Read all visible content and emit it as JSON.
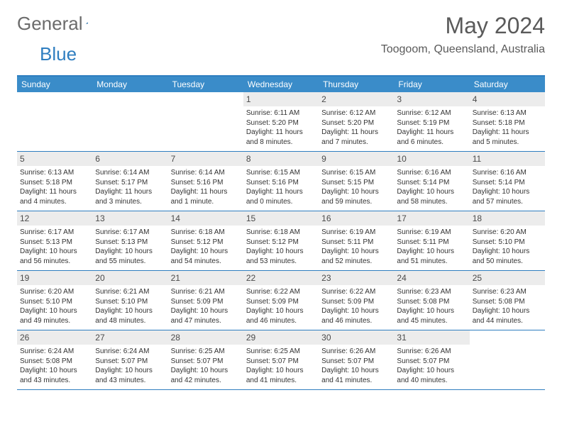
{
  "logo": {
    "text1": "General",
    "text2": "Blue"
  },
  "title": "May 2024",
  "location": "Toogoom, Queensland, Australia",
  "weekdays": [
    "Sunday",
    "Monday",
    "Tuesday",
    "Wednesday",
    "Thursday",
    "Friday",
    "Saturday"
  ],
  "colors": {
    "header_bg": "#3a8cc9",
    "border": "#2f7ec0",
    "daynum_bg": "#ececec",
    "text": "#333333",
    "title_text": "#5a5a5a"
  },
  "weeks": [
    [
      {
        "day": "",
        "sunrise": "",
        "sunset": "",
        "daylight": ""
      },
      {
        "day": "",
        "sunrise": "",
        "sunset": "",
        "daylight": ""
      },
      {
        "day": "",
        "sunrise": "",
        "sunset": "",
        "daylight": ""
      },
      {
        "day": "1",
        "sunrise": "Sunrise: 6:11 AM",
        "sunset": "Sunset: 5:20 PM",
        "daylight": "Daylight: 11 hours and 8 minutes."
      },
      {
        "day": "2",
        "sunrise": "Sunrise: 6:12 AM",
        "sunset": "Sunset: 5:20 PM",
        "daylight": "Daylight: 11 hours and 7 minutes."
      },
      {
        "day": "3",
        "sunrise": "Sunrise: 6:12 AM",
        "sunset": "Sunset: 5:19 PM",
        "daylight": "Daylight: 11 hours and 6 minutes."
      },
      {
        "day": "4",
        "sunrise": "Sunrise: 6:13 AM",
        "sunset": "Sunset: 5:18 PM",
        "daylight": "Daylight: 11 hours and 5 minutes."
      }
    ],
    [
      {
        "day": "5",
        "sunrise": "Sunrise: 6:13 AM",
        "sunset": "Sunset: 5:18 PM",
        "daylight": "Daylight: 11 hours and 4 minutes."
      },
      {
        "day": "6",
        "sunrise": "Sunrise: 6:14 AM",
        "sunset": "Sunset: 5:17 PM",
        "daylight": "Daylight: 11 hours and 3 minutes."
      },
      {
        "day": "7",
        "sunrise": "Sunrise: 6:14 AM",
        "sunset": "Sunset: 5:16 PM",
        "daylight": "Daylight: 11 hours and 1 minute."
      },
      {
        "day": "8",
        "sunrise": "Sunrise: 6:15 AM",
        "sunset": "Sunset: 5:16 PM",
        "daylight": "Daylight: 11 hours and 0 minutes."
      },
      {
        "day": "9",
        "sunrise": "Sunrise: 6:15 AM",
        "sunset": "Sunset: 5:15 PM",
        "daylight": "Daylight: 10 hours and 59 minutes."
      },
      {
        "day": "10",
        "sunrise": "Sunrise: 6:16 AM",
        "sunset": "Sunset: 5:14 PM",
        "daylight": "Daylight: 10 hours and 58 minutes."
      },
      {
        "day": "11",
        "sunrise": "Sunrise: 6:16 AM",
        "sunset": "Sunset: 5:14 PM",
        "daylight": "Daylight: 10 hours and 57 minutes."
      }
    ],
    [
      {
        "day": "12",
        "sunrise": "Sunrise: 6:17 AM",
        "sunset": "Sunset: 5:13 PM",
        "daylight": "Daylight: 10 hours and 56 minutes."
      },
      {
        "day": "13",
        "sunrise": "Sunrise: 6:17 AM",
        "sunset": "Sunset: 5:13 PM",
        "daylight": "Daylight: 10 hours and 55 minutes."
      },
      {
        "day": "14",
        "sunrise": "Sunrise: 6:18 AM",
        "sunset": "Sunset: 5:12 PM",
        "daylight": "Daylight: 10 hours and 54 minutes."
      },
      {
        "day": "15",
        "sunrise": "Sunrise: 6:18 AM",
        "sunset": "Sunset: 5:12 PM",
        "daylight": "Daylight: 10 hours and 53 minutes."
      },
      {
        "day": "16",
        "sunrise": "Sunrise: 6:19 AM",
        "sunset": "Sunset: 5:11 PM",
        "daylight": "Daylight: 10 hours and 52 minutes."
      },
      {
        "day": "17",
        "sunrise": "Sunrise: 6:19 AM",
        "sunset": "Sunset: 5:11 PM",
        "daylight": "Daylight: 10 hours and 51 minutes."
      },
      {
        "day": "18",
        "sunrise": "Sunrise: 6:20 AM",
        "sunset": "Sunset: 5:10 PM",
        "daylight": "Daylight: 10 hours and 50 minutes."
      }
    ],
    [
      {
        "day": "19",
        "sunrise": "Sunrise: 6:20 AM",
        "sunset": "Sunset: 5:10 PM",
        "daylight": "Daylight: 10 hours and 49 minutes."
      },
      {
        "day": "20",
        "sunrise": "Sunrise: 6:21 AM",
        "sunset": "Sunset: 5:10 PM",
        "daylight": "Daylight: 10 hours and 48 minutes."
      },
      {
        "day": "21",
        "sunrise": "Sunrise: 6:21 AM",
        "sunset": "Sunset: 5:09 PM",
        "daylight": "Daylight: 10 hours and 47 minutes."
      },
      {
        "day": "22",
        "sunrise": "Sunrise: 6:22 AM",
        "sunset": "Sunset: 5:09 PM",
        "daylight": "Daylight: 10 hours and 46 minutes."
      },
      {
        "day": "23",
        "sunrise": "Sunrise: 6:22 AM",
        "sunset": "Sunset: 5:09 PM",
        "daylight": "Daylight: 10 hours and 46 minutes."
      },
      {
        "day": "24",
        "sunrise": "Sunrise: 6:23 AM",
        "sunset": "Sunset: 5:08 PM",
        "daylight": "Daylight: 10 hours and 45 minutes."
      },
      {
        "day": "25",
        "sunrise": "Sunrise: 6:23 AM",
        "sunset": "Sunset: 5:08 PM",
        "daylight": "Daylight: 10 hours and 44 minutes."
      }
    ],
    [
      {
        "day": "26",
        "sunrise": "Sunrise: 6:24 AM",
        "sunset": "Sunset: 5:08 PM",
        "daylight": "Daylight: 10 hours and 43 minutes."
      },
      {
        "day": "27",
        "sunrise": "Sunrise: 6:24 AM",
        "sunset": "Sunset: 5:07 PM",
        "daylight": "Daylight: 10 hours and 43 minutes."
      },
      {
        "day": "28",
        "sunrise": "Sunrise: 6:25 AM",
        "sunset": "Sunset: 5:07 PM",
        "daylight": "Daylight: 10 hours and 42 minutes."
      },
      {
        "day": "29",
        "sunrise": "Sunrise: 6:25 AM",
        "sunset": "Sunset: 5:07 PM",
        "daylight": "Daylight: 10 hours and 41 minutes."
      },
      {
        "day": "30",
        "sunrise": "Sunrise: 6:26 AM",
        "sunset": "Sunset: 5:07 PM",
        "daylight": "Daylight: 10 hours and 41 minutes."
      },
      {
        "day": "31",
        "sunrise": "Sunrise: 6:26 AM",
        "sunset": "Sunset: 5:07 PM",
        "daylight": "Daylight: 10 hours and 40 minutes."
      },
      {
        "day": "",
        "sunrise": "",
        "sunset": "",
        "daylight": ""
      }
    ]
  ]
}
